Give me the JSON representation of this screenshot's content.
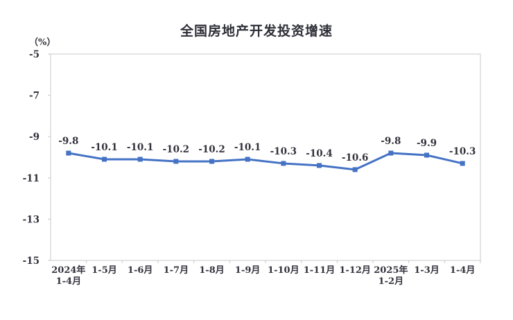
{
  "chart_data": {
    "type": "line",
    "title": "全国房地产开发投资增速",
    "unit_label": "（%）",
    "categories": [
      [
        "2024年",
        "1-4月"
      ],
      [
        "1-5月"
      ],
      [
        "1-6月"
      ],
      [
        "1-7月"
      ],
      [
        "1-8月"
      ],
      [
        "1-9月"
      ],
      [
        "1-10月"
      ],
      [
        "1-11月"
      ],
      [
        "1-12月"
      ],
      [
        "2025年",
        "1-2月"
      ],
      [
        "1-3月"
      ],
      [
        "1-4月"
      ]
    ],
    "values": [
      -9.8,
      -10.1,
      -10.1,
      -10.2,
      -10.2,
      -10.1,
      -10.3,
      -10.4,
      -10.6,
      -9.8,
      -9.9,
      -10.3
    ],
    "data_labels": [
      "-9.8",
      "-10.1",
      "-10.1",
      "-10.2",
      "-10.2",
      "-10.1",
      "-10.3",
      "-10.4",
      "-10.6",
      "-9.8",
      "-9.9",
      "-10.3"
    ],
    "y_ticks": [
      "-5",
      "-7",
      "-9",
      "-11",
      "-13",
      "-15"
    ],
    "ylim": [
      -15,
      -5
    ],
    "grid": false,
    "legend": "none",
    "colors": {
      "line": "#4472C4",
      "marker": "#4472C4",
      "text": "#32323c",
      "axis_border": "#c9c9c9"
    }
  }
}
